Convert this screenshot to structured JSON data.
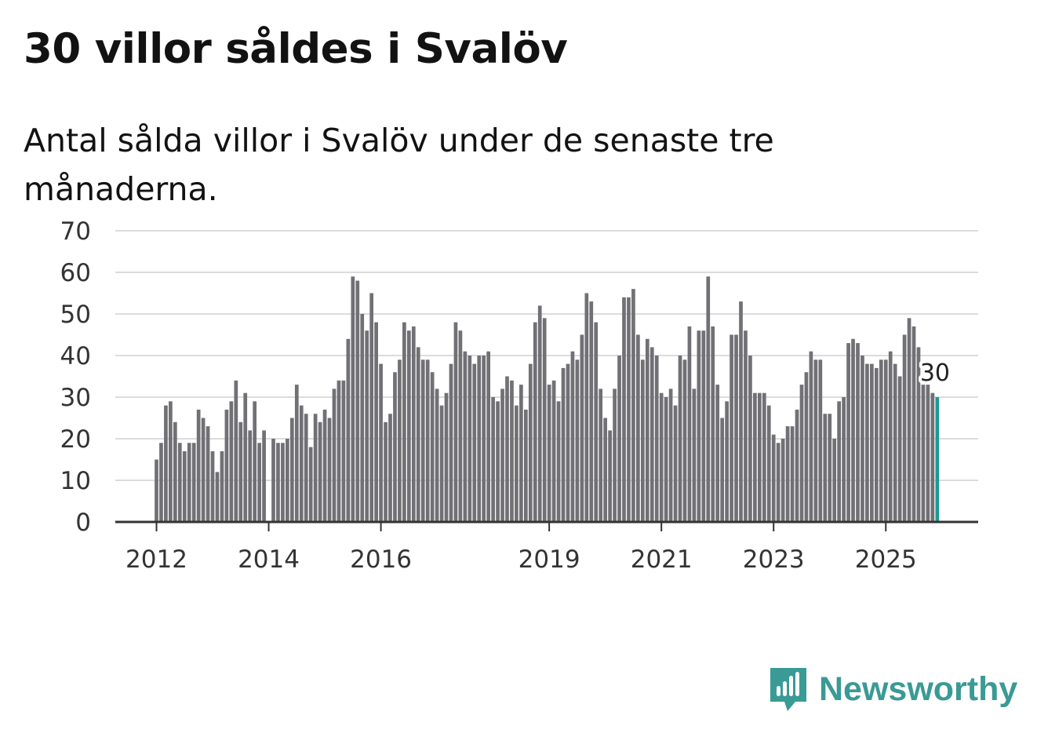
{
  "title": "30 villor såldes i Svalöv",
  "subtitle": "Antal sålda villor i Svalöv under de senaste tre månaderna.",
  "brand": {
    "name": "Newsworthy",
    "icon": "newsworthy-logo-icon",
    "color": "#3a9a95"
  },
  "chart_data": {
    "type": "bar",
    "title": "30 villor såldes i Svalöv",
    "xlabel": "",
    "ylabel": "",
    "ylim": [
      0,
      70
    ],
    "yticks": [
      0,
      10,
      20,
      30,
      40,
      50,
      60,
      70
    ],
    "xticks": [
      {
        "label": "2012",
        "index": 0
      },
      {
        "label": "2014",
        "index": 24
      },
      {
        "label": "2016",
        "index": 48
      },
      {
        "label": "2019",
        "index": 84
      },
      {
        "label": "2021",
        "index": 108
      },
      {
        "label": "2023",
        "index": 132
      },
      {
        "label": "2025",
        "index": 156
      }
    ],
    "bar_color": "#707075",
    "highlight_color": "#1a9a91",
    "highlight_label": "30",
    "grid": true,
    "values": [
      15,
      19,
      28,
      29,
      24,
      19,
      17,
      19,
      19,
      27,
      25,
      23,
      17,
      12,
      17,
      27,
      29,
      34,
      24,
      31,
      22,
      29,
      19,
      22,
      0,
      20,
      19,
      19,
      20,
      25,
      33,
      28,
      26,
      18,
      26,
      24,
      27,
      25,
      32,
      34,
      34,
      44,
      59,
      58,
      50,
      46,
      55,
      48,
      38,
      24,
      26,
      36,
      39,
      48,
      46,
      47,
      42,
      39,
      39,
      36,
      32,
      28,
      31,
      38,
      48,
      46,
      41,
      40,
      38,
      40,
      40,
      41,
      30,
      29,
      32,
      35,
      34,
      28,
      33,
      27,
      38,
      48,
      52,
      49,
      33,
      34,
      29,
      37,
      38,
      41,
      39,
      45,
      55,
      53,
      48,
      32,
      25,
      22,
      32,
      40,
      54,
      54,
      56,
      45,
      39,
      44,
      42,
      40,
      31,
      30,
      32,
      28,
      40,
      39,
      47,
      32,
      46,
      46,
      59,
      47,
      33,
      25,
      29,
      45,
      45,
      53,
      46,
      40,
      31,
      31,
      31,
      28,
      21,
      19,
      20,
      23,
      23,
      27,
      33,
      36,
      41,
      39,
      39,
      26,
      26,
      20,
      29,
      30,
      43,
      44,
      43,
      40,
      38,
      38,
      37,
      39,
      39,
      41,
      38,
      35,
      45,
      49,
      47,
      42,
      33,
      33,
      31,
      30
    ]
  }
}
